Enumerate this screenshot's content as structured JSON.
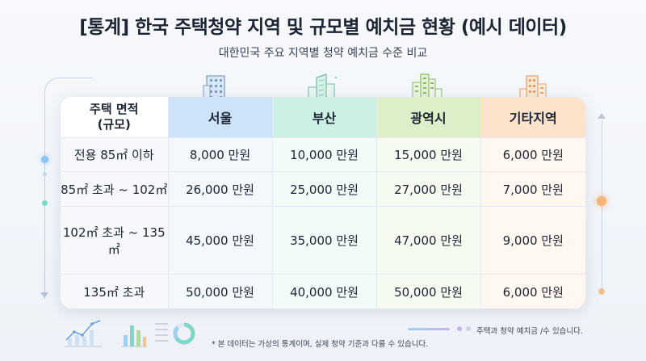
{
  "title": "[통계] 한국 주택청약 지역 및 규모별 예치금 현황 (예시 데이터)",
  "subtitle": "대한민국 주요 지역별 청약 예치금 수준 비교",
  "table": {
    "corner_header": [
      "주택 면적",
      "(규모)"
    ],
    "columns": [
      "서울",
      "부산",
      "광역시",
      "기타지역"
    ],
    "rows": [
      {
        "label": "전용 85㎡ 이하",
        "values": [
          "8,000 만원",
          "10,000 만원",
          "15,000 만원",
          "6,000 만원"
        ]
      },
      {
        "label": "85㎡ 초과 ~ 102㎡",
        "values": [
          "26,000 만원",
          "25,000 만원",
          "27,000 만원",
          "7,000 만원"
        ]
      },
      {
        "label": "102㎡ 초과 ~ 135㎡",
        "values": [
          "45,000 만원",
          "35,000 만원",
          "47,000 만원",
          "9,000 만원"
        ]
      },
      {
        "label": "135㎡ 초과",
        "values": [
          "50,000 만원",
          "40,000 만원",
          "50,000 만원",
          "6,000 만원"
        ]
      }
    ]
  },
  "legend_note": "주택과 청약 예치금 /수 있습니다.",
  "footnote": "* 본 데이터는 가상의 통계이며, 실제 청약 기준과 다를 수 있습니다.",
  "icons": {
    "col1": "office-building-icon",
    "col2": "city-skyline-icon",
    "col3": "tall-towers-icon",
    "col4": "apartment-icon"
  },
  "colors": {
    "seoul": "#cfe3f8",
    "busan": "#cdf0e5",
    "metro": "#dcefc9",
    "other": "#fde3cb"
  }
}
